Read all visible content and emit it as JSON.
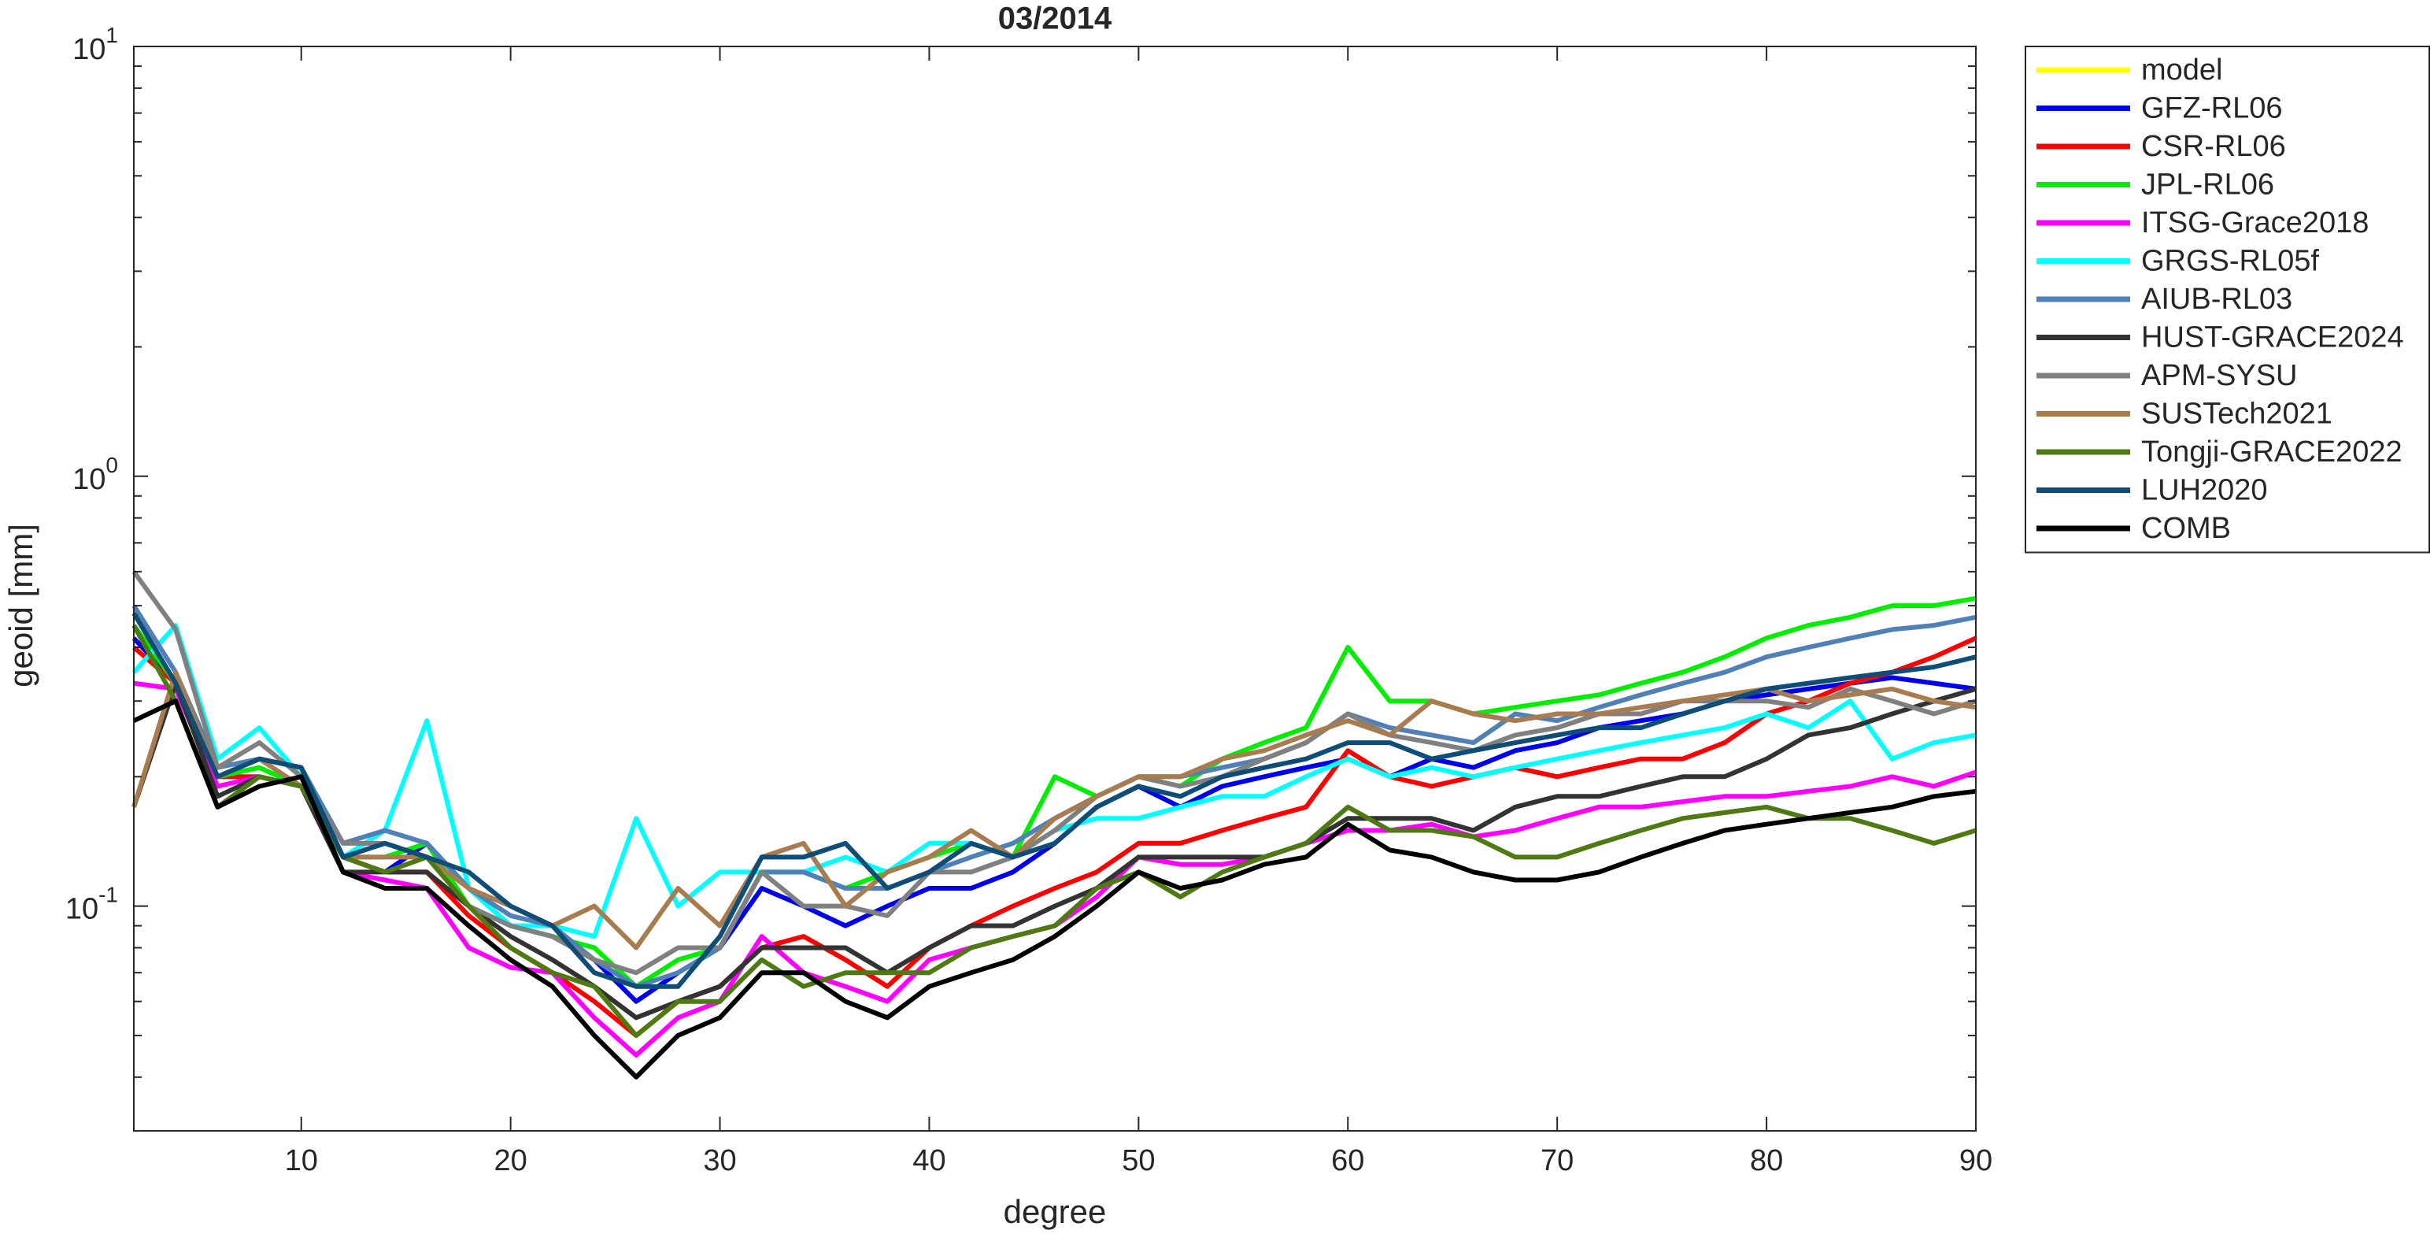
{
  "chart_data": {
    "type": "line",
    "title": "03/2014",
    "xlabel": "degree",
    "ylabel": "geoid [mm]",
    "yscale": "log",
    "xlim": [
      2,
      90
    ],
    "ylim": [
      0.03,
      10
    ],
    "xticks": [
      10,
      20,
      30,
      40,
      50,
      60,
      70,
      80,
      90
    ],
    "yticks": [
      {
        "value": 0.1,
        "label": "10",
        "exponent": "-1"
      },
      {
        "value": 1,
        "label": "10",
        "exponent": "0"
      },
      {
        "value": 10,
        "label": "10",
        "exponent": "1"
      }
    ],
    "yminorticks": [
      0.04,
      0.05,
      0.06,
      0.07,
      0.08,
      0.09,
      0.2,
      0.3,
      0.4,
      0.5,
      0.6,
      0.7,
      0.8,
      0.9,
      2,
      3,
      4,
      5,
      6,
      7,
      8,
      9
    ],
    "legend": "outside-top-right",
    "x": [
      2,
      4,
      6,
      8,
      10,
      12,
      14,
      16,
      18,
      20,
      22,
      24,
      26,
      28,
      30,
      32,
      34,
      36,
      38,
      40,
      42,
      44,
      46,
      48,
      50,
      52,
      54,
      56,
      58,
      60,
      62,
      64,
      66,
      68,
      70,
      72,
      74,
      76,
      78,
      80,
      82,
      84,
      86,
      88,
      90
    ],
    "series": [
      {
        "name": "model",
        "color": "#ffff00",
        "values": [
          null,
          null,
          null,
          null,
          null,
          null,
          null,
          null,
          null,
          null,
          null,
          null,
          null,
          null,
          null,
          null,
          null,
          null,
          null,
          null,
          null,
          null,
          null,
          null,
          null,
          null,
          null,
          null,
          null,
          null,
          null,
          null,
          null,
          null,
          null,
          null,
          null,
          null,
          null,
          null,
          null,
          null,
          null,
          null,
          null
        ]
      },
      {
        "name": "GFZ-RL06",
        "color": "#0000ee",
        "values": [
          0.42,
          0.33,
          0.2,
          0.22,
          0.21,
          0.13,
          0.12,
          0.14,
          0.11,
          0.09,
          0.085,
          0.075,
          0.06,
          0.07,
          0.08,
          0.11,
          0.1,
          0.09,
          0.1,
          0.11,
          0.11,
          0.12,
          0.14,
          0.17,
          0.19,
          0.17,
          0.19,
          0.2,
          0.21,
          0.22,
          0.2,
          0.22,
          0.21,
          0.23,
          0.24,
          0.26,
          0.27,
          0.28,
          0.3,
          0.31,
          0.32,
          0.33,
          0.34,
          0.33,
          0.32
        ]
      },
      {
        "name": "CSR-RL06",
        "color": "#ff0000",
        "values": [
          0.4,
          0.33,
          0.2,
          0.2,
          0.19,
          0.13,
          0.12,
          0.12,
          0.095,
          0.08,
          0.07,
          0.06,
          0.05,
          0.06,
          0.065,
          0.08,
          0.085,
          0.075,
          0.065,
          0.08,
          0.09,
          0.1,
          0.11,
          0.12,
          0.14,
          0.14,
          0.15,
          0.16,
          0.17,
          0.23,
          0.2,
          0.19,
          0.2,
          0.21,
          0.2,
          0.21,
          0.22,
          0.22,
          0.24,
          0.28,
          0.3,
          0.33,
          0.35,
          0.38,
          0.42
        ]
      },
      {
        "name": "JPL-RL06",
        "color": "#00ee00",
        "values": [
          0.45,
          0.33,
          0.2,
          0.21,
          0.19,
          0.13,
          0.13,
          0.14,
          0.1,
          0.09,
          0.085,
          0.08,
          0.065,
          0.075,
          0.08,
          0.12,
          0.12,
          0.11,
          0.12,
          0.13,
          0.14,
          0.13,
          0.2,
          0.18,
          0.2,
          0.19,
          0.22,
          0.24,
          0.26,
          0.4,
          0.3,
          0.3,
          0.28,
          0.29,
          0.3,
          0.31,
          0.33,
          0.35,
          0.38,
          0.42,
          0.45,
          0.47,
          0.5,
          0.5,
          0.52
        ]
      },
      {
        "name": "ITSG-Grace2018",
        "color": "#ff00ff",
        "values": [
          0.33,
          0.32,
          0.19,
          0.2,
          0.19,
          0.12,
          0.115,
          0.11,
          0.08,
          0.072,
          0.07,
          0.055,
          0.045,
          0.055,
          0.06,
          0.085,
          0.07,
          0.065,
          0.06,
          0.075,
          0.08,
          0.085,
          0.09,
          0.105,
          0.13,
          0.125,
          0.125,
          0.13,
          0.14,
          0.15,
          0.15,
          0.155,
          0.145,
          0.15,
          0.16,
          0.17,
          0.17,
          0.175,
          0.18,
          0.18,
          0.185,
          0.19,
          0.2,
          0.19,
          0.205
        ]
      },
      {
        "name": "GRGS-RL05f",
        "color": "#00ffff",
        "values": [
          0.35,
          0.45,
          0.22,
          0.26,
          0.2,
          0.13,
          0.15,
          0.27,
          0.11,
          0.09,
          0.09,
          0.085,
          0.16,
          0.1,
          0.12,
          0.12,
          0.12,
          0.13,
          0.12,
          0.14,
          0.14,
          0.13,
          0.15,
          0.16,
          0.16,
          0.17,
          0.18,
          0.18,
          0.2,
          0.22,
          0.2,
          0.21,
          0.2,
          0.21,
          0.22,
          0.23,
          0.24,
          0.25,
          0.26,
          0.28,
          0.26,
          0.3,
          0.22,
          0.24,
          0.25
        ]
      },
      {
        "name": "AIUB-RL03",
        "color": "#4f81b8",
        "values": [
          0.5,
          0.35,
          0.21,
          0.22,
          0.21,
          0.14,
          0.15,
          0.14,
          0.11,
          0.095,
          0.09,
          0.075,
          0.065,
          0.07,
          0.08,
          0.12,
          0.12,
          0.11,
          0.11,
          0.12,
          0.13,
          0.14,
          0.16,
          0.18,
          0.2,
          0.2,
          0.21,
          0.22,
          0.24,
          0.28,
          0.26,
          0.25,
          0.24,
          0.28,
          0.27,
          0.29,
          0.31,
          0.33,
          0.35,
          0.38,
          0.4,
          0.42,
          0.44,
          0.45,
          0.47
        ]
      },
      {
        "name": "HUST-GRACE2024",
        "color": "#333333",
        "values": [
          0.17,
          0.33,
          0.18,
          0.2,
          0.19,
          0.12,
          0.12,
          0.12,
          0.1,
          0.085,
          0.075,
          0.065,
          0.055,
          0.06,
          0.065,
          0.08,
          0.08,
          0.08,
          0.07,
          0.08,
          0.09,
          0.09,
          0.1,
          0.11,
          0.13,
          0.13,
          0.13,
          0.13,
          0.14,
          0.16,
          0.16,
          0.16,
          0.15,
          0.17,
          0.18,
          0.18,
          0.19,
          0.2,
          0.2,
          0.22,
          0.25,
          0.26,
          0.28,
          0.3,
          0.32
        ]
      },
      {
        "name": "APM-SYSU",
        "color": "#808080",
        "values": [
          0.6,
          0.44,
          0.21,
          0.24,
          0.2,
          0.14,
          0.14,
          0.13,
          0.1,
          0.09,
          0.085,
          0.075,
          0.07,
          0.08,
          0.08,
          0.12,
          0.1,
          0.1,
          0.095,
          0.12,
          0.12,
          0.13,
          0.15,
          0.18,
          0.2,
          0.19,
          0.2,
          0.22,
          0.24,
          0.28,
          0.25,
          0.24,
          0.23,
          0.25,
          0.26,
          0.28,
          0.28,
          0.3,
          0.3,
          0.3,
          0.29,
          0.32,
          0.3,
          0.28,
          0.3
        ]
      },
      {
        "name": "SUSTech2021",
        "color": "#a97c50",
        "values": [
          0.17,
          0.35,
          0.2,
          0.22,
          0.19,
          0.13,
          0.13,
          0.13,
          0.11,
          0.1,
          0.09,
          0.1,
          0.08,
          0.11,
          0.09,
          0.13,
          0.14,
          0.1,
          0.12,
          0.13,
          0.15,
          0.13,
          0.16,
          0.18,
          0.2,
          0.2,
          0.22,
          0.23,
          0.25,
          0.27,
          0.25,
          0.3,
          0.28,
          0.27,
          0.28,
          0.28,
          0.29,
          0.3,
          0.31,
          0.32,
          0.3,
          0.31,
          0.32,
          0.3,
          0.29
        ]
      },
      {
        "name": "Tongji-GRACE2022",
        "color": "#4e7a12",
        "values": [
          0.45,
          0.3,
          0.17,
          0.2,
          0.19,
          0.13,
          0.12,
          0.13,
          0.1,
          0.08,
          0.07,
          0.065,
          0.05,
          0.06,
          0.06,
          0.075,
          0.065,
          0.07,
          0.07,
          0.07,
          0.08,
          0.085,
          0.09,
          0.11,
          0.12,
          0.105,
          0.12,
          0.13,
          0.14,
          0.17,
          0.15,
          0.15,
          0.145,
          0.13,
          0.13,
          0.14,
          0.15,
          0.16,
          0.165,
          0.17,
          0.16,
          0.16,
          0.15,
          0.14,
          0.15
        ]
      },
      {
        "name": "LUH2020",
        "color": "#0e4d78",
        "values": [
          0.48,
          0.33,
          0.2,
          0.22,
          0.21,
          0.13,
          0.14,
          0.13,
          0.12,
          0.1,
          0.09,
          0.07,
          0.065,
          0.065,
          0.085,
          0.13,
          0.13,
          0.14,
          0.11,
          0.12,
          0.14,
          0.13,
          0.14,
          0.17,
          0.19,
          0.18,
          0.2,
          0.21,
          0.22,
          0.24,
          0.24,
          0.22,
          0.23,
          0.24,
          0.25,
          0.26,
          0.26,
          0.28,
          0.3,
          0.32,
          0.33,
          0.34,
          0.35,
          0.36,
          0.38
        ]
      },
      {
        "name": "COMB",
        "color": "#000000",
        "values": [
          0.27,
          0.3,
          0.17,
          0.19,
          0.2,
          0.12,
          0.11,
          0.11,
          0.09,
          0.075,
          0.065,
          0.05,
          0.04,
          0.05,
          0.055,
          0.07,
          0.07,
          0.06,
          0.055,
          0.065,
          0.07,
          0.075,
          0.085,
          0.1,
          0.12,
          0.11,
          0.115,
          0.125,
          0.13,
          0.155,
          0.135,
          0.13,
          0.12,
          0.115,
          0.115,
          0.12,
          0.13,
          0.14,
          0.15,
          0.155,
          0.16,
          0.165,
          0.17,
          0.18,
          0.185
        ]
      }
    ]
  }
}
